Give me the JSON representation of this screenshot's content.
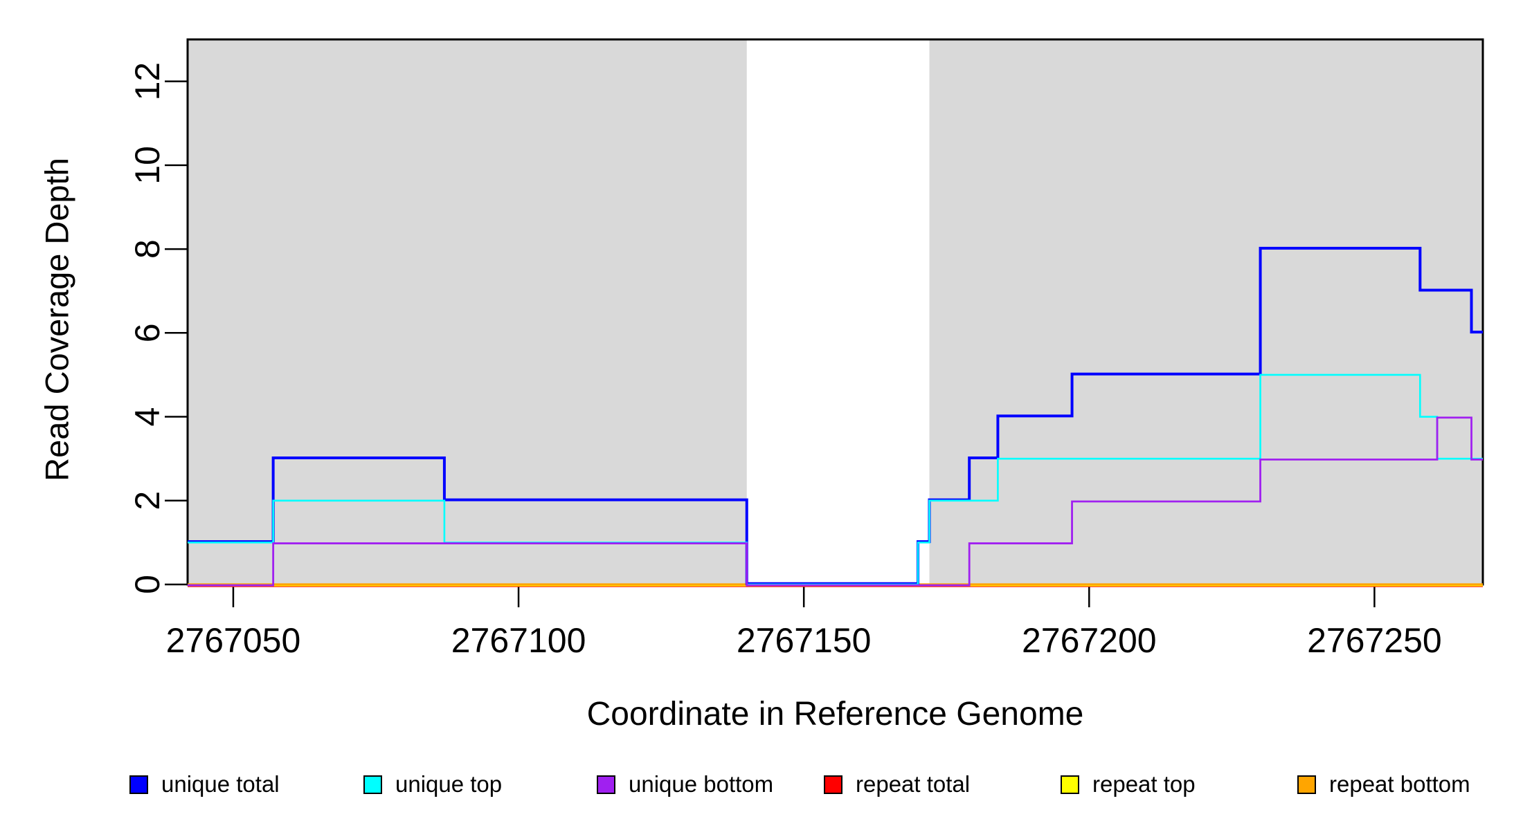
{
  "chart_data": {
    "type": "line",
    "style": "step-after",
    "title": "",
    "xlabel": "Coordinate in Reference Genome",
    "ylabel": "Read Coverage Depth",
    "xlim": [
      2767042,
      2767269
    ],
    "ylim": [
      0,
      13
    ],
    "x_ticks": [
      2767050,
      2767100,
      2767150,
      2767200,
      2767250
    ],
    "y_ticks": [
      0,
      2,
      4,
      6,
      8,
      10,
      12
    ],
    "grid": false,
    "legend_position": "bottom",
    "background_color": "#ffffff",
    "shade_color": "#d9d9d9",
    "shaded_regions": [
      {
        "from": 2767042,
        "to": 2767140
      },
      {
        "from": 2767172,
        "to": 2767269
      }
    ],
    "draw_order": [
      "repeat total",
      "repeat top",
      "repeat bottom",
      "unique total",
      "unique top",
      "unique bottom"
    ],
    "series": [
      {
        "name": "unique total",
        "color": "#0000ff",
        "points": [
          [
            2767042,
            1
          ],
          [
            2767057,
            3
          ],
          [
            2767087,
            2
          ],
          [
            2767140,
            0
          ],
          [
            2767170,
            1
          ],
          [
            2767172,
            2
          ],
          [
            2767179,
            3
          ],
          [
            2767184,
            4
          ],
          [
            2767197,
            5
          ],
          [
            2767230,
            8
          ],
          [
            2767258,
            7
          ],
          [
            2767267,
            6
          ]
        ]
      },
      {
        "name": "unique top",
        "color": "#00ffff",
        "points": [
          [
            2767042,
            1
          ],
          [
            2767057,
            2
          ],
          [
            2767087,
            1
          ],
          [
            2767140,
            0
          ],
          [
            2767170,
            1
          ],
          [
            2767172,
            2
          ],
          [
            2767184,
            3
          ],
          [
            2767230,
            5
          ],
          [
            2767258,
            4
          ],
          [
            2767261,
            3
          ]
        ]
      },
      {
        "name": "unique bottom",
        "color": "#a020f0",
        "points": [
          [
            2767042,
            0
          ],
          [
            2767057,
            1
          ],
          [
            2767140,
            0
          ],
          [
            2767179,
            1
          ],
          [
            2767197,
            2
          ],
          [
            2767230,
            3
          ],
          [
            2767261,
            4
          ],
          [
            2767267,
            3
          ]
        ]
      },
      {
        "name": "repeat total",
        "color": "#ff0000",
        "points": [
          [
            2767042,
            0
          ]
        ]
      },
      {
        "name": "repeat top",
        "color": "#ffff00",
        "points": [
          [
            2767042,
            0
          ]
        ]
      },
      {
        "name": "repeat bottom",
        "color": "#ffa500",
        "points": [
          [
            2767042,
            0
          ]
        ]
      }
    ]
  }
}
